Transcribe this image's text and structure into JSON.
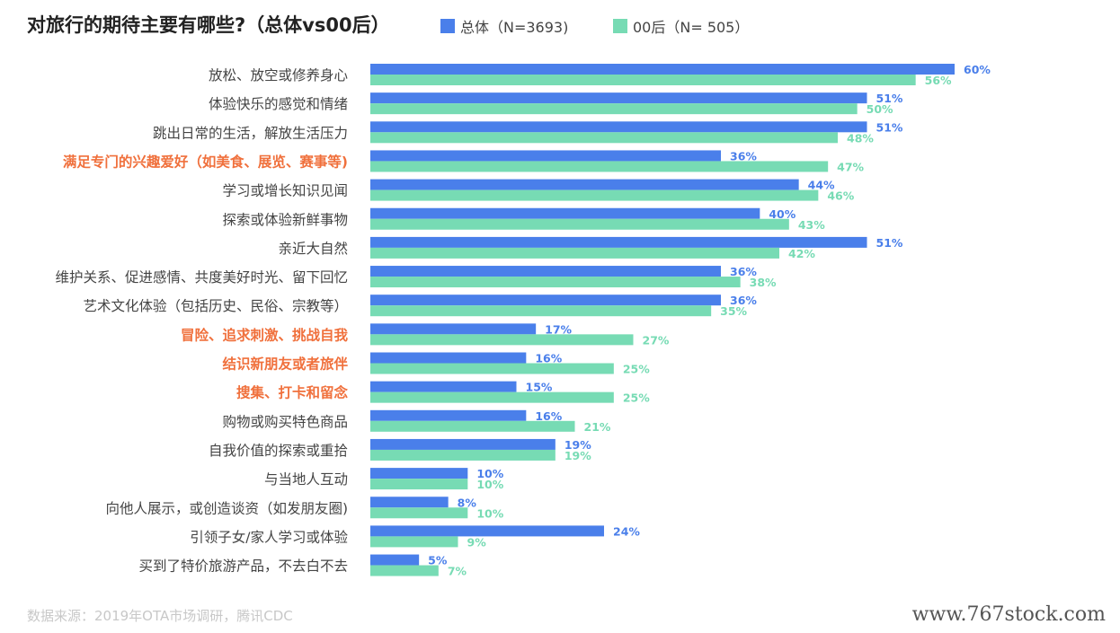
{
  "header": {
    "title": "对旅行的期待主要有哪些?（总体vs00后）"
  },
  "legend": {
    "total": "总体（N=3693)",
    "gen00": "00后（N= 505）"
  },
  "colors": {
    "total": "#4a7fea",
    "gen00": "#77dbb4",
    "highlight": "#f0703c",
    "label": "#444444"
  },
  "chart_data": {
    "type": "bar",
    "orientation": "horizontal",
    "title": "对旅行的期待主要有哪些?（总体vs00后）",
    "categories": [
      "放松、放空或修养身心",
      "体验快乐的感觉和情绪",
      "跳出日常的生活，解放生活压力",
      "满足专门的兴趣爱好（如美食、展览、赛事等)",
      "学习或增长知识见闻",
      "探索或体验新鲜事物",
      "亲近大自然",
      "维护关系、促进感情、共度美好时光、留下回忆",
      "艺术文化体验（包括历史、民俗、宗教等）",
      "冒险、追求刺激、挑战自我",
      "结识新朋友或者旅伴",
      "搜集、打卡和留念",
      "购物或购买特色商品",
      "自我价值的探索或重拾",
      "与当地人互动",
      "向他人展示，或创造谈资（如发朋友圈)",
      "引领子女/家人学习或体验",
      "买到了特价旅游产品，不去白不去"
    ],
    "highlighted": [
      "满足专门的兴趣爱好（如美食、展览、赛事等)",
      "冒险、追求刺激、挑战自我",
      "结识新朋友或者旅伴",
      "搜集、打卡和留念"
    ],
    "series": [
      {
        "name": "总体（N=3693)",
        "color": "#4a7fea",
        "values": [
          60,
          51,
          51,
          36,
          44,
          40,
          51,
          36,
          36,
          17,
          16,
          15,
          16,
          19,
          10,
          8,
          24,
          5
        ]
      },
      {
        "name": "00后（N= 505）",
        "color": "#77dbb4",
        "values": [
          56,
          50,
          48,
          47,
          46,
          43,
          42,
          38,
          35,
          27,
          25,
          25,
          21,
          19,
          10,
          10,
          9,
          7
        ]
      }
    ],
    "value_suffix": "%",
    "xlim": [
      0,
      60
    ],
    "grid": false,
    "legend_position": "top"
  },
  "footer": {
    "source": "数据来源：2019年OTA市场调研，腾讯CDC",
    "watermark": "www.767stock.com"
  }
}
